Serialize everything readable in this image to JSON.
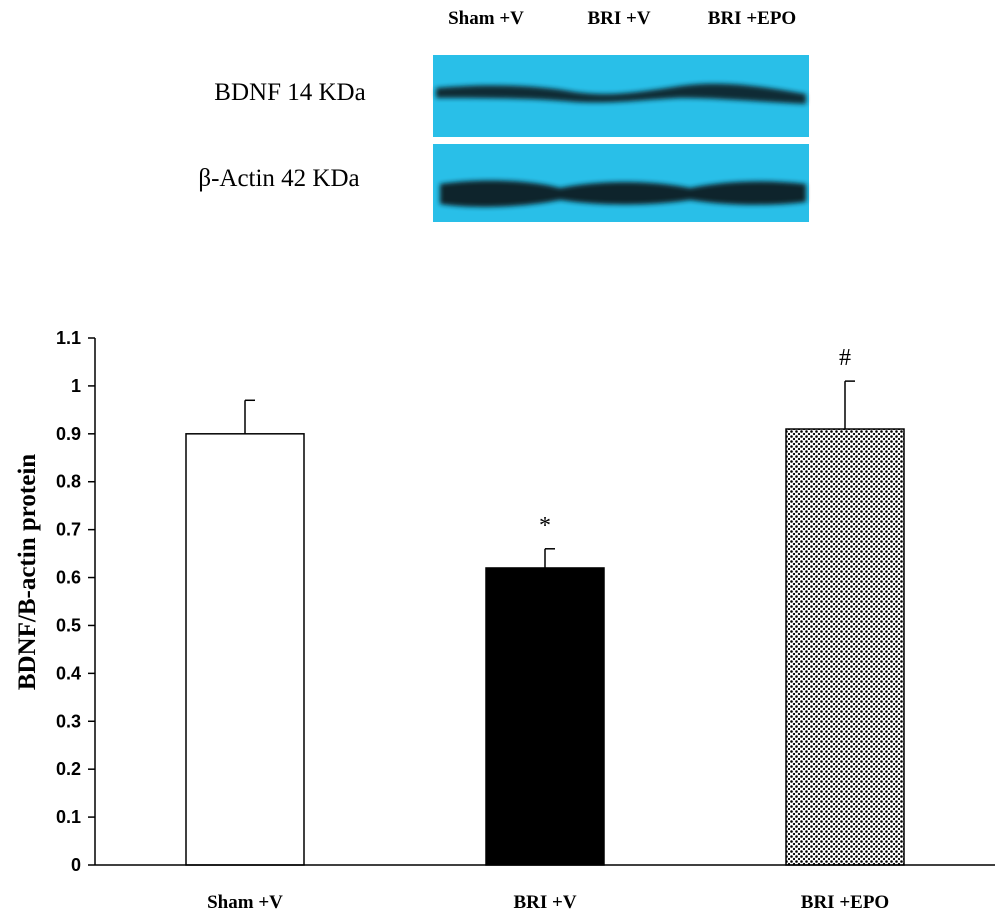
{
  "blot": {
    "lane_labels": [
      "Sham +V",
      "BRI +V",
      "BRI +EPO"
    ],
    "rows": [
      {
        "label": "BDNF 14 KDa"
      },
      {
        "label": "β-Actin 42 KDa"
      }
    ],
    "colors": {
      "background": "#29bfe8",
      "band": "#0b1a22"
    }
  },
  "chart_data": {
    "type": "bar",
    "categories": [
      "Sham +V",
      "BRI +V",
      "BRI +EPO"
    ],
    "values": [
      0.9,
      0.62,
      0.91
    ],
    "errors": [
      0.07,
      0.04,
      0.1
    ],
    "annotations": [
      "",
      "*",
      "#"
    ],
    "fills": [
      "white",
      "black",
      "dotted"
    ],
    "title": "",
    "xlabel": "",
    "ylabel": "BDNF/B-actin protein",
    "ylim": [
      0,
      1.1
    ],
    "yticks": [
      0,
      0.1,
      0.2,
      0.3,
      0.4,
      0.5,
      0.6,
      0.7,
      0.8,
      0.9,
      1,
      1.1
    ],
    "ytick_labels": [
      "0",
      "0.1",
      "0.2",
      "0.3",
      "0.4",
      "0.5",
      "0.6",
      "0.7",
      "0.8",
      "0.9",
      "1",
      "1.1"
    ],
    "grid": false,
    "legend": "none"
  }
}
